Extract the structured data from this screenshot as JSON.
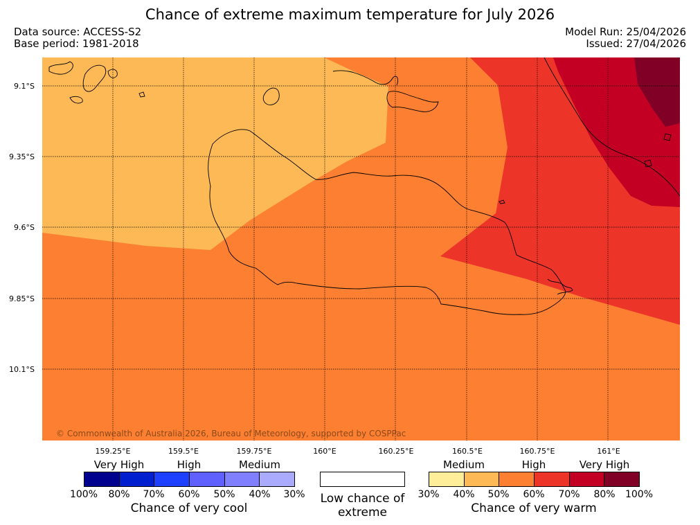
{
  "header": {
    "title": "Chance of extreme maximum temperature for July 2026",
    "data_source": "Data source: ACCESS-S2",
    "base_period": "Base period: 1981-2018",
    "model_run": "Model Run: 25/04/2026",
    "issued": "Issued: 27/04/2026"
  },
  "map": {
    "y_ticks": [
      "9.1°S",
      "9.35°S",
      "9.6°S",
      "9.85°S",
      "10.1°S"
    ],
    "x_ticks": [
      "159.25°E",
      "159.5°E",
      "159.75°E",
      "160°E",
      "160.25°E",
      "160.5°E",
      "160.75°E",
      "161°E"
    ],
    "copyright": "© Commonwealth of Australia 2026, Bureau of Meteorology, supported by COSPPac"
  },
  "legend": {
    "cool": {
      "bands": [
        "Very High",
        "High",
        "Medium"
      ],
      "percent_labels": [
        "100%",
        "80%",
        "70%",
        "60%",
        "50%",
        "40%",
        "30%"
      ],
      "colors": [
        "#00008f",
        "#0020cf",
        "#2040ff",
        "#6060ff",
        "#8080ff",
        "#aaaaff"
      ],
      "caption": "Chance of very cool"
    },
    "low": {
      "caption": "Low chance of extreme"
    },
    "warm": {
      "bands": [
        "Medium",
        "High",
        "Very High"
      ],
      "percent_labels": [
        "30%",
        "40%",
        "50%",
        "60%",
        "70%",
        "80%",
        "100%"
      ],
      "colors": [
        "#ffee99",
        "#fcb955",
        "#fd7f32",
        "#ec3429",
        "#c30024",
        "#800026"
      ],
      "caption": "Chance of very warm"
    }
  },
  "colors": {
    "medium_40_50": "#fcb955",
    "high_50_60": "#fd7f32",
    "high_60_70": "#ec3429",
    "very_high_70_80": "#c30024",
    "very_high_80_100": "#800026"
  }
}
